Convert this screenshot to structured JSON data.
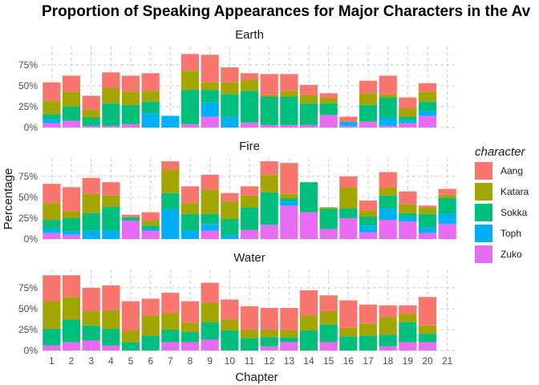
{
  "chart_data": {
    "type": "bar",
    "stacked": true,
    "title": "Proportion of Speaking Appearances for Major Characters in the Av",
    "xlabel": "Chapter",
    "ylabel": "Percentage",
    "x_ticks": [
      "1",
      "2",
      "3",
      "4",
      "5",
      "6",
      "7",
      "8",
      "9",
      "10",
      "11",
      "12",
      "13",
      "14",
      "15",
      "16",
      "17",
      "18",
      "19",
      "20",
      "21"
    ],
    "y_ticks": [
      "0%",
      "25%",
      "50%",
      "75%"
    ],
    "ylim": [
      0,
      0.95
    ],
    "grid": true,
    "legend": {
      "title": "character",
      "position": "right"
    },
    "stack_order": [
      "Zuko",
      "Toph",
      "Sokka",
      "Katara",
      "Aang"
    ],
    "series_colors": {
      "Aang": "#F8766D",
      "Katara": "#A3A500",
      "Sokka": "#00BF7D",
      "Toph": "#00B0F6",
      "Zuko": "#E76BF3"
    },
    "panels": [
      {
        "name": "Earth",
        "chapters": [
          1,
          2,
          3,
          4,
          5,
          6,
          7,
          8,
          9,
          10,
          11,
          12,
          13,
          14,
          15,
          16,
          17,
          18,
          19,
          20
        ],
        "series": {
          "Zuko": [
            0.05,
            0.08,
            0.02,
            0.02,
            0.04,
            0.0,
            0.0,
            0.04,
            0.13,
            0.0,
            0.06,
            0.03,
            0.03,
            0.03,
            0.15,
            0.02,
            0.07,
            0.02,
            0.05,
            0.14
          ],
          "Toph": [
            0.05,
            0.0,
            0.0,
            0.0,
            0.0,
            0.17,
            0.14,
            0.0,
            0.17,
            0.13,
            0.0,
            0.0,
            0.0,
            0.0,
            0.0,
            0.05,
            0.0,
            0.1,
            0.03,
            0.06
          ],
          "Sokka": [
            0.06,
            0.17,
            0.1,
            0.27,
            0.23,
            0.14,
            0.0,
            0.41,
            0.15,
            0.27,
            0.38,
            0.34,
            0.34,
            0.26,
            0.14,
            0.0,
            0.2,
            0.24,
            0.05,
            0.11
          ],
          "Katara": [
            0.16,
            0.18,
            0.09,
            0.18,
            0.16,
            0.13,
            0.0,
            0.23,
            0.09,
            0.14,
            0.13,
            0.02,
            0.07,
            0.1,
            0.06,
            0.0,
            0.14,
            0.04,
            0.1,
            0.12
          ],
          "Aang": [
            0.22,
            0.19,
            0.17,
            0.19,
            0.19,
            0.21,
            0.0,
            0.2,
            0.33,
            0.18,
            0.08,
            0.25,
            0.2,
            0.12,
            0.06,
            0.06,
            0.15,
            0.22,
            0.13,
            0.1
          ]
        }
      },
      {
        "name": "Fire",
        "chapters": [
          1,
          2,
          3,
          4,
          5,
          6,
          7,
          8,
          9,
          10,
          11,
          12,
          13,
          14,
          15,
          16,
          17,
          18,
          19,
          20,
          21
        ],
        "series": {
          "Zuko": [
            0.07,
            0.05,
            0.0,
            0.0,
            0.22,
            0.1,
            0.0,
            0.0,
            0.1,
            0.0,
            0.11,
            0.17,
            0.4,
            0.32,
            0.12,
            0.25,
            0.08,
            0.23,
            0.21,
            0.07,
            0.18
          ],
          "Toph": [
            0.05,
            0.04,
            0.1,
            0.1,
            0.0,
            0.02,
            0.35,
            0.1,
            0.08,
            0.04,
            0.0,
            0.0,
            0.05,
            0.0,
            0.0,
            0.0,
            0.08,
            0.13,
            0.05,
            0.07,
            0.12
          ],
          "Sokka": [
            0.11,
            0.16,
            0.21,
            0.29,
            0.04,
            0.04,
            0.2,
            0.2,
            0.12,
            0.2,
            0.27,
            0.39,
            0.04,
            0.36,
            0.24,
            0.12,
            0.11,
            0.16,
            0.05,
            0.16,
            0.19
          ],
          "Katara": [
            0.2,
            0.08,
            0.23,
            0.13,
            0.0,
            0.06,
            0.28,
            0.13,
            0.29,
            0.21,
            0.14,
            0.21,
            0.05,
            0.0,
            0.02,
            0.25,
            0.07,
            0.1,
            0.11,
            0.08,
            0.04
          ],
          "Aang": [
            0.23,
            0.29,
            0.19,
            0.16,
            0.03,
            0.1,
            0.1,
            0.2,
            0.18,
            0.1,
            0.11,
            0.16,
            0.37,
            0.0,
            0.0,
            0.13,
            0.12,
            0.18,
            0.15,
            0.02,
            0.07
          ]
        }
      },
      {
        "name": "Water",
        "chapters": [
          1,
          2,
          3,
          4,
          5,
          6,
          7,
          8,
          9,
          10,
          11,
          12,
          13,
          14,
          15,
          16,
          17,
          18,
          19,
          20
        ],
        "series": {
          "Zuko": [
            0.06,
            0.1,
            0.12,
            0.06,
            0.0,
            0.0,
            0.1,
            0.1,
            0.13,
            0.0,
            0.0,
            0.05,
            0.1,
            0.0,
            0.1,
            0.0,
            0.0,
            0.05,
            0.1,
            0.1
          ],
          "Toph": [
            0.0,
            0.0,
            0.0,
            0.0,
            0.0,
            0.0,
            0.0,
            0.0,
            0.0,
            0.0,
            0.0,
            0.0,
            0.0,
            0.0,
            0.0,
            0.0,
            0.0,
            0.0,
            0.0,
            0.0
          ],
          "Sokka": [
            0.2,
            0.27,
            0.18,
            0.2,
            0.1,
            0.18,
            0.15,
            0.12,
            0.21,
            0.24,
            0.15,
            0.11,
            0.06,
            0.24,
            0.21,
            0.17,
            0.18,
            0.14,
            0.24,
            0.1
          ],
          "Katara": [
            0.33,
            0.27,
            0.17,
            0.22,
            0.14,
            0.24,
            0.2,
            0.11,
            0.23,
            0.13,
            0.1,
            0.09,
            0.08,
            0.18,
            0.16,
            0.1,
            0.14,
            0.21,
            0.1,
            0.1
          ],
          "Aang": [
            0.31,
            0.26,
            0.28,
            0.3,
            0.35,
            0.2,
            0.24,
            0.26,
            0.24,
            0.24,
            0.28,
            0.26,
            0.27,
            0.3,
            0.19,
            0.33,
            0.23,
            0.14,
            0.1,
            0.34
          ]
        }
      }
    ]
  }
}
